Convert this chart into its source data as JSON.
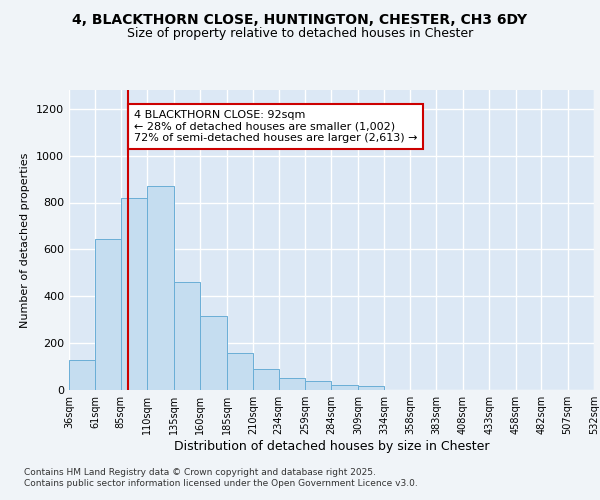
{
  "title_line1": "4, BLACKTHORN CLOSE, HUNTINGTON, CHESTER, CH3 6DY",
  "title_line2": "Size of property relative to detached houses in Chester",
  "xlabel": "Distribution of detached houses by size in Chester",
  "ylabel": "Number of detached properties",
  "bin_labels": [
    "36sqm",
    "61sqm",
    "85sqm",
    "110sqm",
    "135sqm",
    "160sqm",
    "185sqm",
    "210sqm",
    "234sqm",
    "259sqm",
    "284sqm",
    "309sqm",
    "334sqm",
    "358sqm",
    "383sqm",
    "408sqm",
    "433sqm",
    "458sqm",
    "482sqm",
    "507sqm",
    "532sqm"
  ],
  "bin_edges": [
    36,
    61,
    85,
    110,
    135,
    160,
    185,
    210,
    234,
    259,
    284,
    309,
    334,
    358,
    383,
    408,
    433,
    458,
    482,
    507,
    532
  ],
  "bar_heights": [
    130,
    645,
    820,
    870,
    460,
    315,
    158,
    90,
    50,
    40,
    20,
    15,
    0,
    0,
    0,
    0,
    0,
    0,
    0,
    0
  ],
  "bar_color": "#c5ddf0",
  "bar_edge_color": "#6aaed6",
  "property_size": 92,
  "red_line_color": "#cc0000",
  "annotation_text": "4 BLACKTHORN CLOSE: 92sqm\n← 28% of detached houses are smaller (1,002)\n72% of semi-detached houses are larger (2,613) →",
  "annotation_box_color": "#ffffff",
  "annotation_box_edge": "#cc0000",
  "ylim": [
    0,
    1280
  ],
  "yticks": [
    0,
    200,
    400,
    600,
    800,
    1000,
    1200
  ],
  "footer_line1": "Contains HM Land Registry data © Crown copyright and database right 2025.",
  "footer_line2": "Contains public sector information licensed under the Open Government Licence v3.0.",
  "bg_color": "#f0f4f8",
  "plot_bg_color": "#dce8f5",
  "grid_color": "#ffffff"
}
